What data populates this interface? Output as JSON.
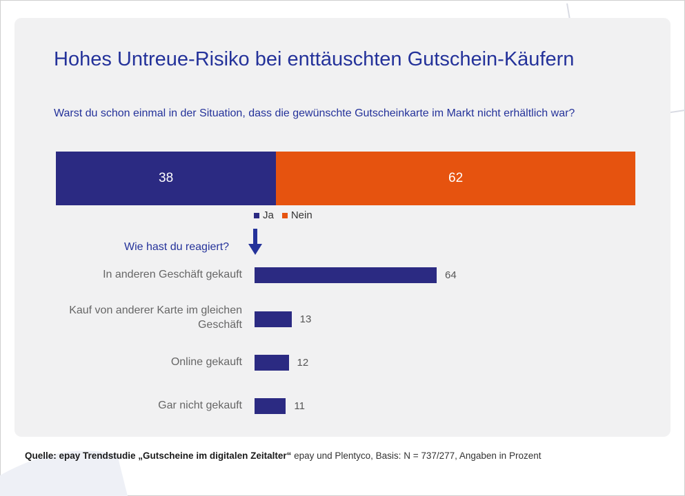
{
  "title": "Hohes Untreue-Risiko bei enttäuschten Gutschein-Käufern",
  "question": "Warst du schon einmal in der Situation, dass die gewünschte Gutscheinkarte  im Markt nicht erhältlich war?",
  "sub_question": "Wie hast du reagiert?",
  "source": {
    "prefix": "Quelle: epay Trendstudie „Gutscheine im digitalen Zeitalter“",
    "rest": " epay und Plentyco, Basis: N = 737/277, Angaben in  Prozent"
  },
  "colors": {
    "ja": "#2b2a82",
    "nein": "#e6530f",
    "card": "#f1f1f2",
    "title": "#24329a"
  },
  "chart_data": [
    {
      "type": "bar",
      "orientation": "horizontal",
      "stacked": true,
      "categories": [
        ""
      ],
      "series": [
        {
          "name": "Ja",
          "values": [
            38
          ]
        },
        {
          "name": "Nein",
          "values": [
            62
          ]
        }
      ],
      "legend": "below"
    },
    {
      "type": "bar",
      "orientation": "horizontal",
      "categories": [
        "In anderen Geschäft gekauft",
        "Kauf von anderer Karte im gleichen Geschäft",
        "Online gekauft",
        "Gar nicht gekauft"
      ],
      "values": [
        64,
        13,
        12,
        11
      ]
    }
  ]
}
